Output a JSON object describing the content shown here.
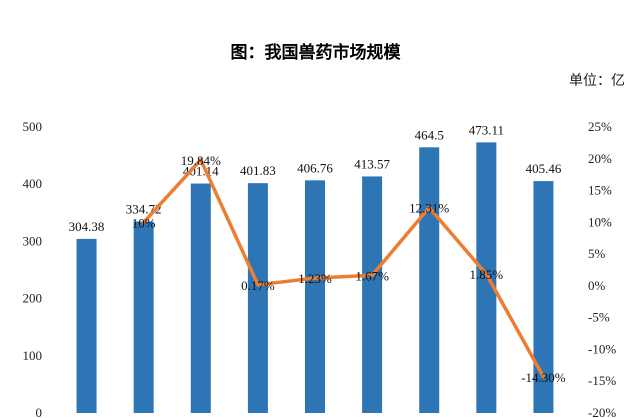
{
  "chart_data": {
    "type": "bar",
    "title": "图：我国兽药市场规模",
    "unit_label": "单位：亿",
    "categories": [
      "",
      "",
      "",
      "",
      "",
      "",
      "",
      "",
      ""
    ],
    "series": [
      {
        "values": [
          304.38,
          334.72,
          401.14,
          401.83,
          406.76,
          413.57,
          464.5,
          473.11,
          405.46
        ],
        "type": "bar",
        "axis": "left",
        "color": "#2E75B6"
      },
      {
        "values": [
          null,
          10,
          19.84,
          0.17,
          1.23,
          1.67,
          12.31,
          1.85,
          -14.3
        ],
        "type": "line",
        "axis": "right",
        "color": "#ED7D31"
      }
    ],
    "bar_value_labels": [
      "304.38",
      "334.72",
      "401.14",
      "401.83",
      "406.76",
      "413.57",
      "464.5",
      "473.11",
      "405.46"
    ],
    "line_value_labels": [
      "",
      "10%",
      "19.84%",
      "0.17%",
      "1.23%",
      "1.67%",
      "12.31%",
      "1.85%",
      "-14.30%"
    ],
    "y_left": {
      "ylim": [
        0,
        500
      ],
      "ticks": [
        "0",
        "100",
        "200",
        "300",
        "400",
        "500"
      ]
    },
    "y_right": {
      "ylim": [
        -20,
        25
      ],
      "ticks": [
        "-20%",
        "-15%",
        "-10%",
        "-5%",
        "0%",
        "5%",
        "10%",
        "15%",
        "20%",
        "25%"
      ]
    },
    "grid": false,
    "legend": "none"
  }
}
